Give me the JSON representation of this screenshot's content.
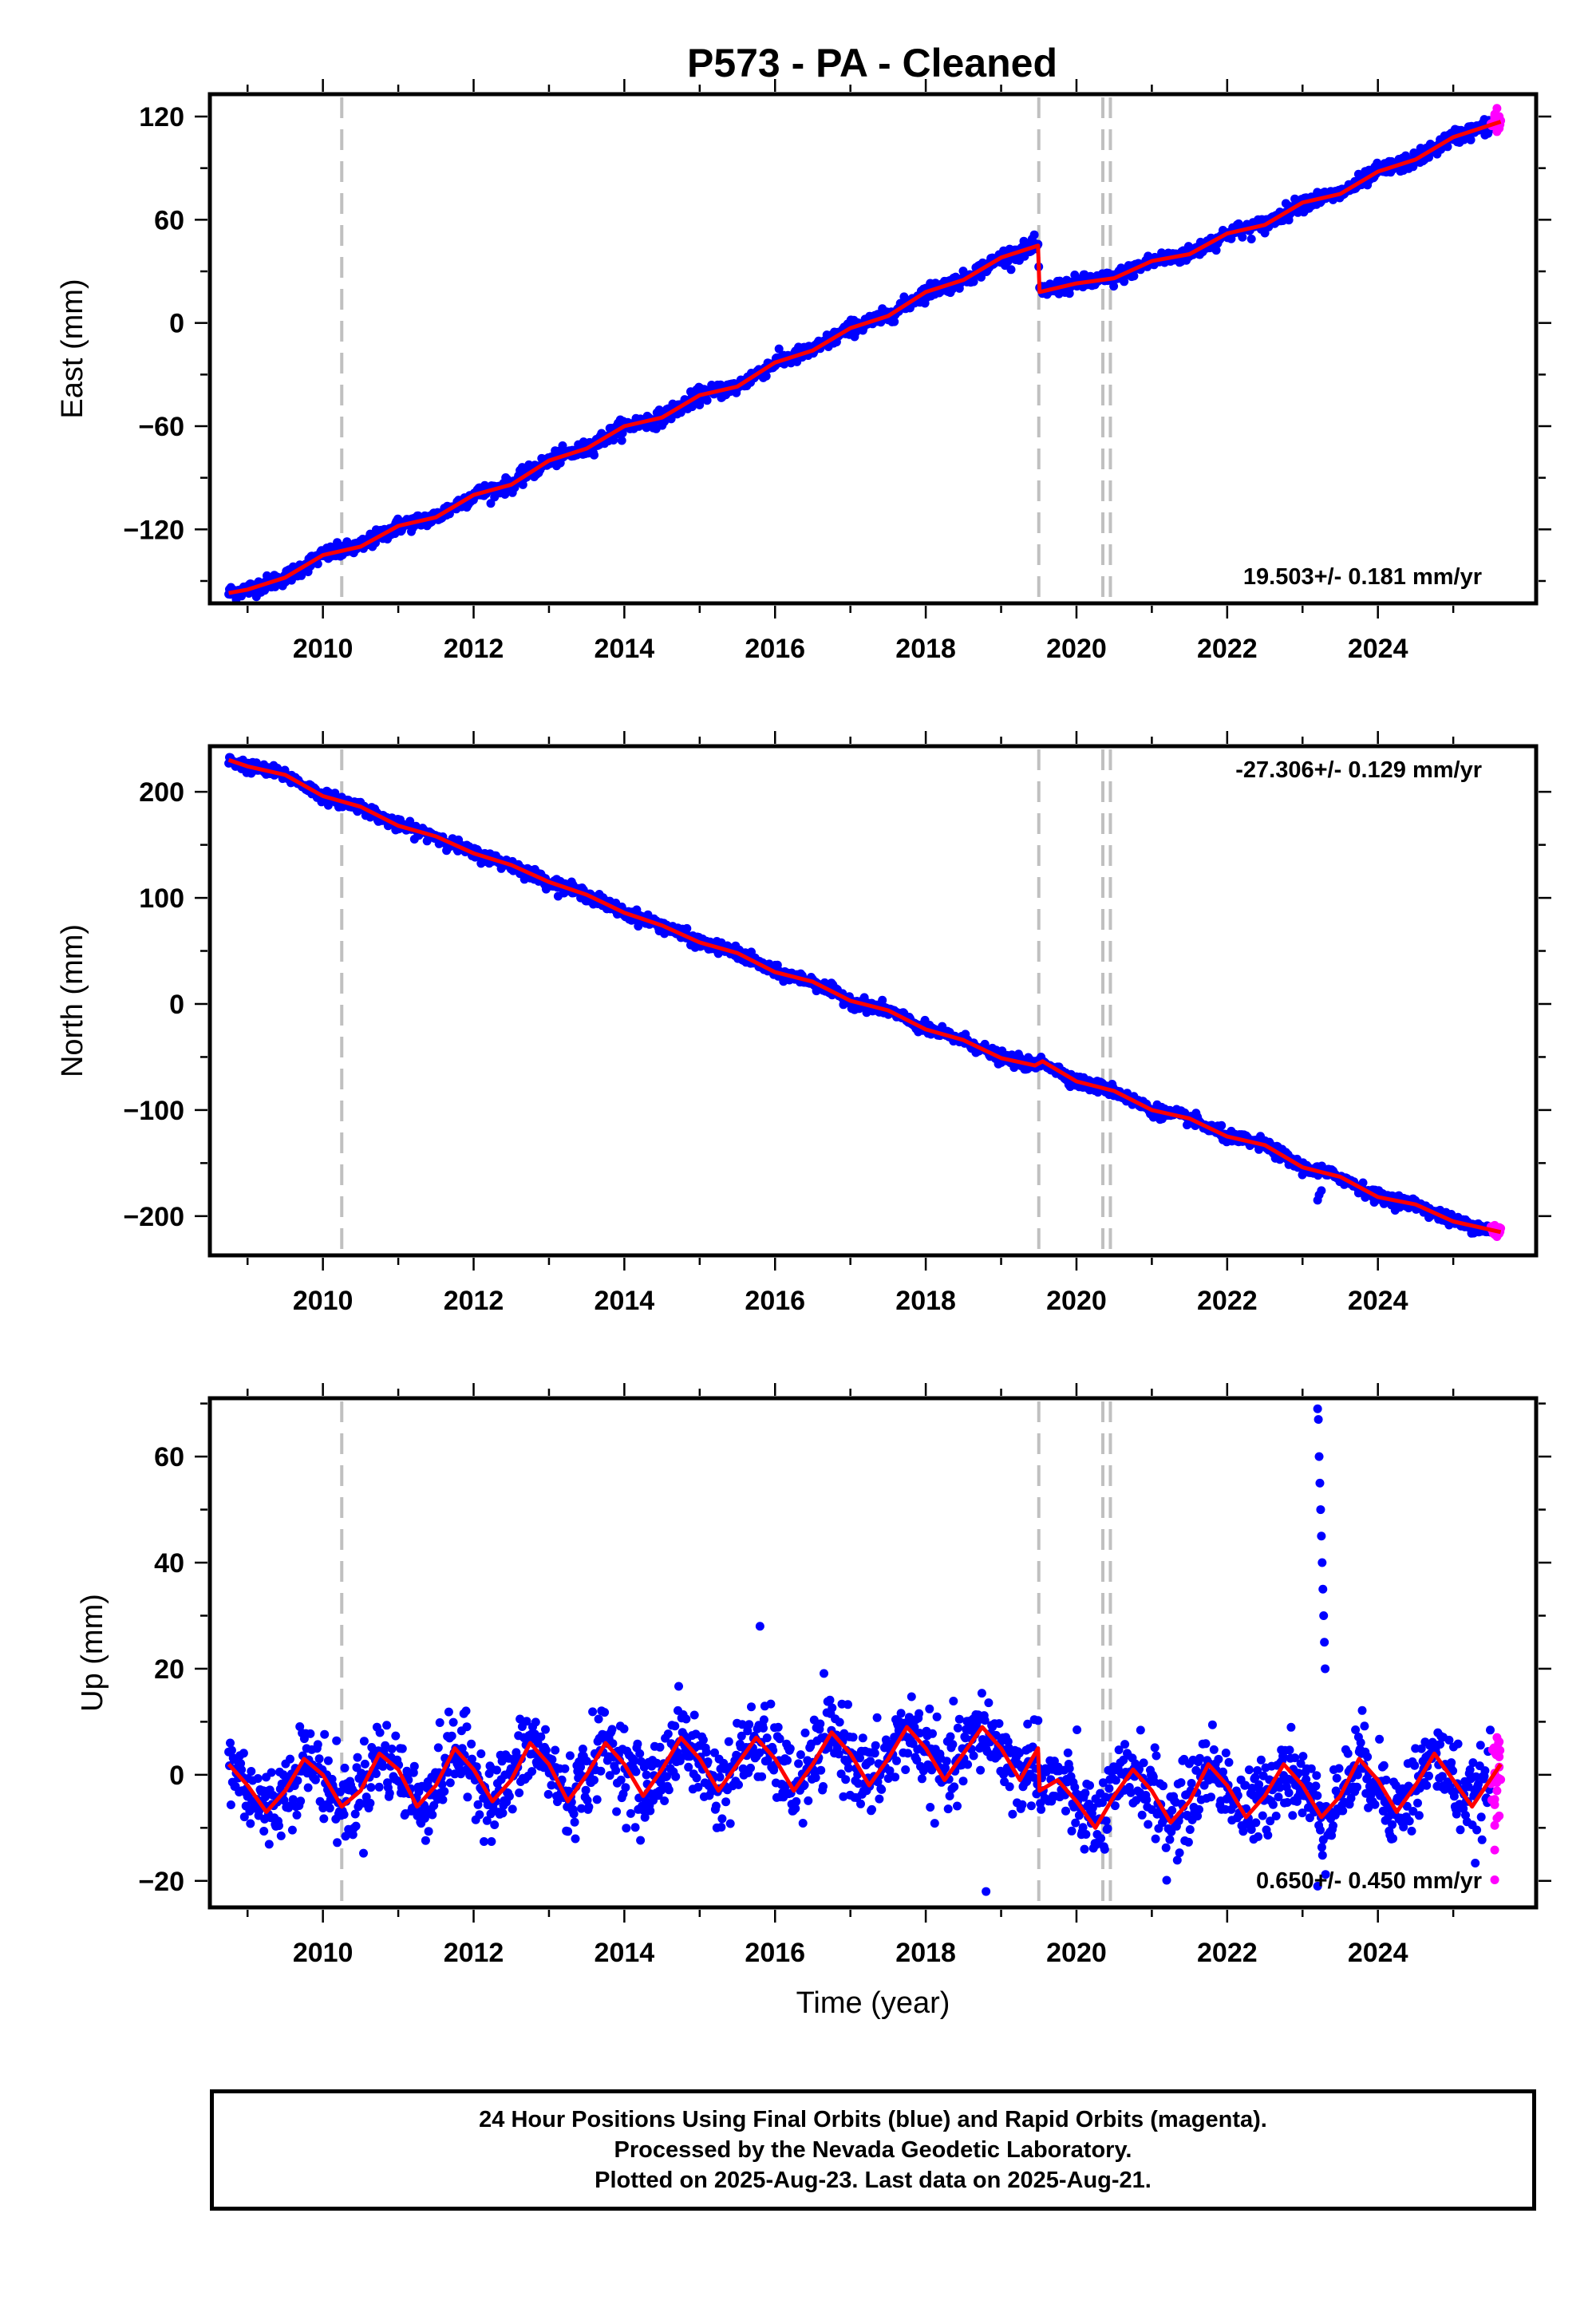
{
  "title": "P573  - PA - Cleaned",
  "colors": {
    "final_orbits": "#0000ff",
    "rapid_orbits": "#ff00ff",
    "model": "#ff0000",
    "steps": "#c0c0c0",
    "frame": "#000000"
  },
  "step_epochs": [
    2010.25,
    2019.5,
    2020.35,
    2020.45
  ],
  "chart_data": [
    {
      "type": "scatter",
      "name": "east",
      "ylabel": "East (mm)",
      "xlabel": "",
      "xlim": [
        2008.5,
        2026.1
      ],
      "ylim": [
        -163,
        133
      ],
      "xticks": [
        2010,
        2012,
        2014,
        2016,
        2018,
        2020,
        2022,
        2024
      ],
      "yticks": [
        120,
        60,
        0,
        -60,
        -120
      ],
      "ytick_labels": [
        "120",
        "60",
        "0",
        "−60",
        "−120"
      ],
      "rate_text": "19.503+/- 0.181 mm/yr",
      "rate_position": "bottom-right",
      "grid": false,
      "start_year": 2008.75,
      "end_year": 2025.63,
      "final_until": 2025.5,
      "model_breaks": [
        2019.5
      ],
      "model": [
        [
          2008.75,
          -157
        ],
        [
          2009.0,
          -155
        ],
        [
          2009.5,
          -148
        ],
        [
          2010.0,
          -135
        ],
        [
          2010.5,
          -130
        ],
        [
          2011.0,
          -118
        ],
        [
          2011.5,
          -113
        ],
        [
          2012.0,
          -100
        ],
        [
          2012.5,
          -94
        ],
        [
          2013.0,
          -80
        ],
        [
          2013.5,
          -73
        ],
        [
          2014.0,
          -60
        ],
        [
          2014.5,
          -55
        ],
        [
          2015.0,
          -42
        ],
        [
          2015.5,
          -37
        ],
        [
          2016.0,
          -23
        ],
        [
          2016.5,
          -16
        ],
        [
          2017.0,
          -3
        ],
        [
          2017.5,
          4
        ],
        [
          2018.0,
          18
        ],
        [
          2018.5,
          25
        ],
        [
          2019.0,
          38
        ],
        [
          2019.49,
          45
        ],
        [
          2019.51,
          18
        ],
        [
          2020.0,
          23
        ],
        [
          2020.5,
          26
        ],
        [
          2021.0,
          36
        ],
        [
          2021.5,
          40
        ],
        [
          2022.0,
          52
        ],
        [
          2022.5,
          57
        ],
        [
          2023.0,
          70
        ],
        [
          2023.5,
          75
        ],
        [
          2024.0,
          88
        ],
        [
          2024.5,
          95
        ],
        [
          2025.0,
          108
        ],
        [
          2025.63,
          117
        ]
      ],
      "scatter_noise": 2.2,
      "outliers": []
    },
    {
      "type": "scatter",
      "name": "north",
      "ylabel": "North (mm)",
      "xlabel": "",
      "xlim": [
        2008.5,
        2026.1
      ],
      "ylim": [
        -237,
        243
      ],
      "xticks": [
        2010,
        2012,
        2014,
        2016,
        2018,
        2020,
        2022,
        2024
      ],
      "yticks": [
        200,
        100,
        0,
        -100,
        -200
      ],
      "ytick_labels": [
        "200",
        "100",
        "0",
        "−100",
        "−200"
      ],
      "rate_text": "-27.306+/- 0.129 mm/yr",
      "rate_position": "top-right",
      "grid": false,
      "start_year": 2008.75,
      "end_year": 2025.63,
      "final_until": 2025.5,
      "model_breaks": [],
      "model": [
        [
          2008.75,
          230
        ],
        [
          2009.0,
          224
        ],
        [
          2009.5,
          216
        ],
        [
          2010.0,
          196
        ],
        [
          2010.5,
          186
        ],
        [
          2011.0,
          168
        ],
        [
          2011.5,
          158
        ],
        [
          2012.0,
          142
        ],
        [
          2012.5,
          131
        ],
        [
          2013.0,
          115
        ],
        [
          2013.5,
          103
        ],
        [
          2014.0,
          86
        ],
        [
          2014.5,
          74
        ],
        [
          2015.0,
          58
        ],
        [
          2015.5,
          48
        ],
        [
          2016.0,
          30
        ],
        [
          2016.5,
          21
        ],
        [
          2017.0,
          3
        ],
        [
          2017.5,
          -6
        ],
        [
          2018.0,
          -24
        ],
        [
          2018.5,
          -34
        ],
        [
          2019.0,
          -51
        ],
        [
          2019.45,
          -58
        ],
        [
          2019.55,
          -54
        ],
        [
          2020.0,
          -73
        ],
        [
          2020.5,
          -82
        ],
        [
          2021.0,
          -100
        ],
        [
          2021.5,
          -108
        ],
        [
          2022.0,
          -125
        ],
        [
          2022.5,
          -133
        ],
        [
          2023.0,
          -154
        ],
        [
          2023.5,
          -163
        ],
        [
          2024.0,
          -182
        ],
        [
          2024.5,
          -189
        ],
        [
          2025.0,
          -205
        ],
        [
          2025.63,
          -215
        ]
      ],
      "scatter_noise": 2.8,
      "outliers": [
        [
          2023.2,
          -185
        ],
        [
          2023.22,
          -180
        ],
        [
          2023.25,
          -176
        ]
      ]
    },
    {
      "type": "scatter",
      "name": "up",
      "ylabel": "Up (mm)",
      "xlabel": "Time (year)",
      "xlim": [
        2008.5,
        2026.1
      ],
      "ylim": [
        -25,
        71
      ],
      "xticks": [
        2010,
        2012,
        2014,
        2016,
        2018,
        2020,
        2022,
        2024
      ],
      "yticks": [
        60,
        40,
        20,
        0,
        -20
      ],
      "ytick_labels": [
        "60",
        "40",
        "20",
        "0",
        "−20"
      ],
      "rate_text": "0.650+/- 0.450 mm/yr",
      "rate_position": "bottom-right",
      "grid": false,
      "start_year": 2008.75,
      "end_year": 2025.63,
      "final_until": 2025.5,
      "model_breaks": [
        2019.5
      ],
      "model": [
        [
          2008.75,
          2
        ],
        [
          2009.0,
          -2
        ],
        [
          2009.25,
          -7
        ],
        [
          2009.5,
          -3
        ],
        [
          2009.75,
          3
        ],
        [
          2010.0,
          0
        ],
        [
          2010.25,
          -6
        ],
        [
          2010.5,
          -3
        ],
        [
          2010.75,
          4
        ],
        [
          2011.0,
          1
        ],
        [
          2011.25,
          -6
        ],
        [
          2011.5,
          -2
        ],
        [
          2011.75,
          5
        ],
        [
          2012.0,
          1
        ],
        [
          2012.25,
          -5
        ],
        [
          2012.5,
          -1
        ],
        [
          2012.75,
          6
        ],
        [
          2013.0,
          2
        ],
        [
          2013.25,
          -5
        ],
        [
          2013.5,
          0
        ],
        [
          2013.75,
          6
        ],
        [
          2014.0,
          2
        ],
        [
          2014.25,
          -4
        ],
        [
          2014.5,
          1
        ],
        [
          2014.75,
          7
        ],
        [
          2015.0,
          3
        ],
        [
          2015.25,
          -3
        ],
        [
          2015.5,
          2
        ],
        [
          2015.75,
          7
        ],
        [
          2016.0,
          3
        ],
        [
          2016.25,
          -3
        ],
        [
          2016.5,
          2
        ],
        [
          2016.75,
          8
        ],
        [
          2017.0,
          4
        ],
        [
          2017.25,
          -2
        ],
        [
          2017.5,
          3
        ],
        [
          2017.75,
          9
        ],
        [
          2018.0,
          5
        ],
        [
          2018.25,
          -1
        ],
        [
          2018.5,
          4
        ],
        [
          2018.75,
          9
        ],
        [
          2019.0,
          5
        ],
        [
          2019.25,
          -1
        ],
        [
          2019.49,
          5
        ],
        [
          2019.51,
          -3
        ],
        [
          2019.75,
          -1
        ],
        [
          2020.0,
          -5
        ],
        [
          2020.25,
          -10
        ],
        [
          2020.5,
          -4
        ],
        [
          2020.75,
          1
        ],
        [
          2021.0,
          -3
        ],
        [
          2021.25,
          -9
        ],
        [
          2021.5,
          -5
        ],
        [
          2021.75,
          2
        ],
        [
          2022.0,
          -2
        ],
        [
          2022.25,
          -8
        ],
        [
          2022.5,
          -4
        ],
        [
          2022.75,
          2
        ],
        [
          2023.0,
          -2
        ],
        [
          2023.25,
          -8
        ],
        [
          2023.5,
          -4
        ],
        [
          2023.75,
          3
        ],
        [
          2024.0,
          -1
        ],
        [
          2024.25,
          -7
        ],
        [
          2024.5,
          -2
        ],
        [
          2024.75,
          4
        ],
        [
          2025.0,
          -1
        ],
        [
          2025.25,
          -6
        ],
        [
          2025.63,
          2
        ]
      ],
      "scatter_noise": 3.8,
      "outliers": [
        [
          2023.2,
          69
        ],
        [
          2023.21,
          67
        ],
        [
          2023.22,
          60
        ],
        [
          2023.23,
          55
        ],
        [
          2023.24,
          50
        ],
        [
          2023.25,
          45
        ],
        [
          2023.26,
          40
        ],
        [
          2023.27,
          35
        ],
        [
          2023.28,
          30
        ],
        [
          2023.29,
          25
        ],
        [
          2023.3,
          20
        ],
        [
          2015.8,
          28
        ],
        [
          2018.8,
          -22
        ],
        [
          2023.2,
          -21
        ]
      ]
    }
  ],
  "footer": {
    "line1": "24 Hour Positions Using Final Orbits (blue) and Rapid Orbits (magenta).",
    "line2": "Processed by the Nevada Geodetic Laboratory.",
    "line3": "Plotted on 2025-Aug-23. Last data on 2025-Aug-21."
  }
}
